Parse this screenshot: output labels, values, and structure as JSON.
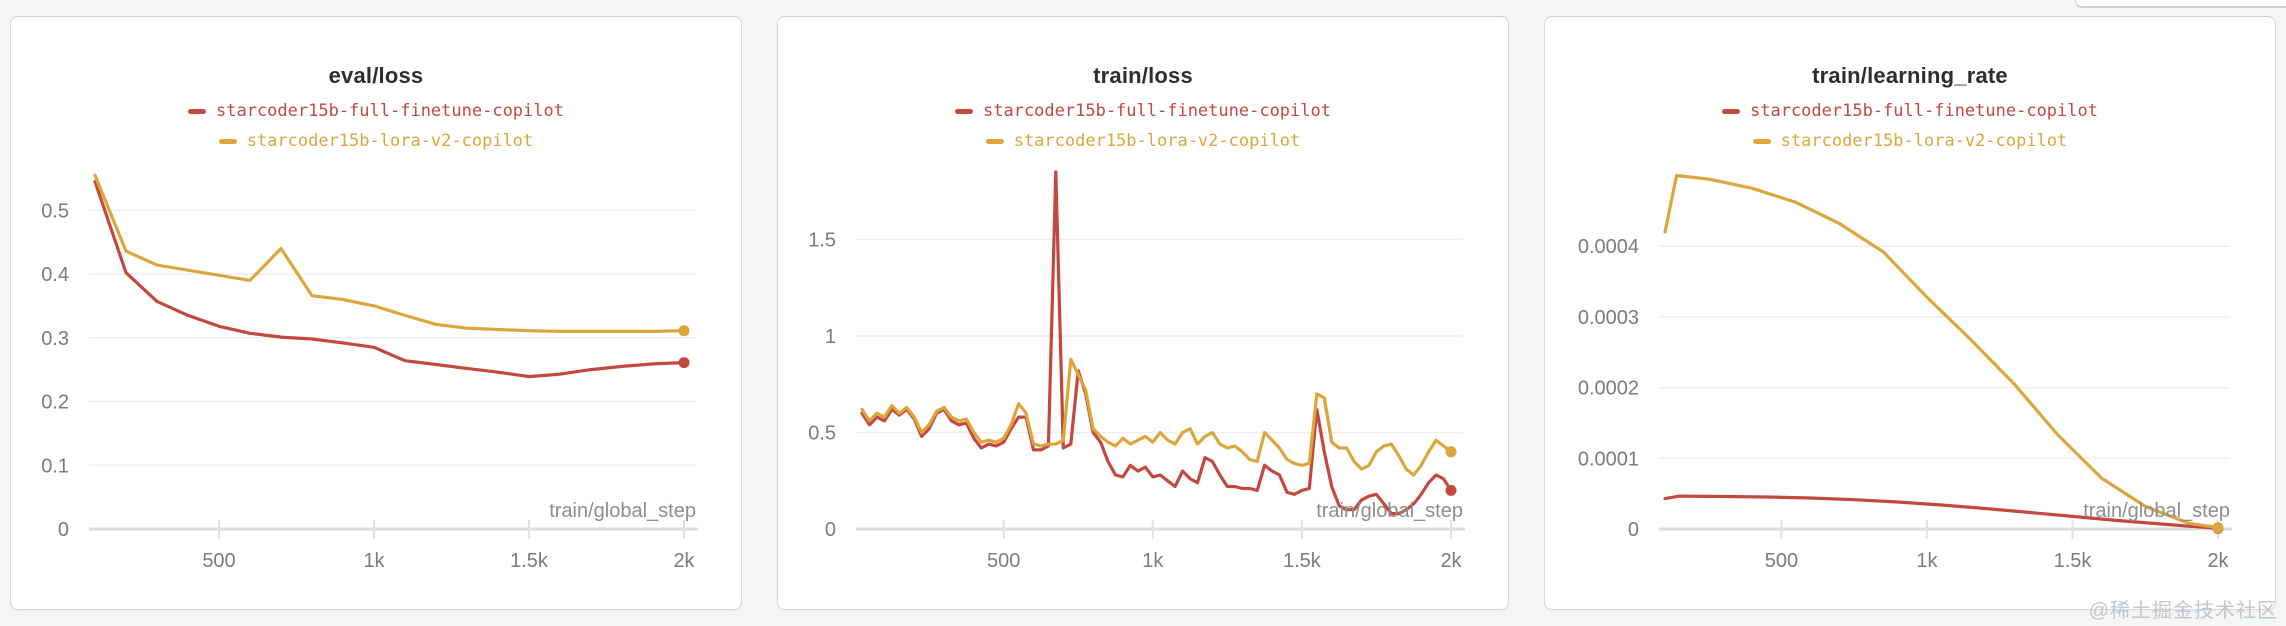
{
  "page": {
    "watermark": "@稀土掘金技术社区"
  },
  "chart_data": [
    {
      "type": "line",
      "title": "eval/loss",
      "xlabel": "train/global_step",
      "xlim": [
        100,
        2000
      ],
      "ylim": [
        0,
        0.56
      ],
      "grid": "horizontal",
      "legend_position": "top-center",
      "x_ticks": [
        {
          "v": 500,
          "label": "500"
        },
        {
          "v": 1000,
          "label": "1k"
        },
        {
          "v": 1500,
          "label": "1.5k"
        },
        {
          "v": 2000,
          "label": "2k"
        }
      ],
      "y_ticks": [
        {
          "v": 0,
          "label": "0"
        },
        {
          "v": 0.1,
          "label": "0.1"
        },
        {
          "v": 0.2,
          "label": "0.2"
        },
        {
          "v": 0.3,
          "label": "0.3"
        },
        {
          "v": 0.4,
          "label": "0.4"
        },
        {
          "v": 0.5,
          "label": "0.5"
        }
      ],
      "series": [
        {
          "name": "starcoder15b-full-finetune-copilot",
          "color": "#c3493f",
          "x0": 100,
          "dx": 100,
          "y": [
            0.545,
            0.402,
            0.357,
            0.335,
            0.318,
            0.307,
            0.301,
            0.298,
            0.292,
            0.285,
            0.264,
            0.258,
            0.252,
            0.246,
            0.239,
            0.243,
            0.25,
            0.255,
            0.259,
            0.261
          ]
        },
        {
          "name": "starcoder15b-lora-v2-copilot",
          "color": "#dca63d",
          "x0": 100,
          "dx": 100,
          "y": [
            0.555,
            0.436,
            0.414,
            0.406,
            0.398,
            0.39,
            0.44,
            0.366,
            0.36,
            0.35,
            0.335,
            0.321,
            0.315,
            0.313,
            0.311,
            0.31,
            0.31,
            0.31,
            0.31,
            0.311
          ]
        }
      ]
    },
    {
      "type": "line",
      "title": "train/loss",
      "xlabel": "train/global_step",
      "xlim": [
        25,
        2000
      ],
      "ylim": [
        0,
        1.85
      ],
      "grid": "horizontal",
      "legend_position": "top-center",
      "x_ticks": [
        {
          "v": 500,
          "label": "500"
        },
        {
          "v": 1000,
          "label": "1k"
        },
        {
          "v": 1500,
          "label": "1.5k"
        },
        {
          "v": 2000,
          "label": "2k"
        }
      ],
      "y_ticks": [
        {
          "v": 0,
          "label": "0"
        },
        {
          "v": 0.5,
          "label": "0.5"
        },
        {
          "v": 1,
          "label": "1"
        },
        {
          "v": 1.5,
          "label": "1.5"
        }
      ],
      "series": [
        {
          "name": "starcoder15b-full-finetune-copilot",
          "color": "#c3493f",
          "x0": 25,
          "dx": 25,
          "y": [
            0.6,
            0.54,
            0.58,
            0.56,
            0.62,
            0.59,
            0.62,
            0.57,
            0.48,
            0.52,
            0.6,
            0.62,
            0.56,
            0.54,
            0.55,
            0.47,
            0.42,
            0.44,
            0.43,
            0.45,
            0.52,
            0.58,
            0.58,
            0.41,
            0.41,
            0.43,
            1.85,
            0.42,
            0.44,
            0.82,
            0.7,
            0.5,
            0.45,
            0.35,
            0.28,
            0.27,
            0.33,
            0.3,
            0.32,
            0.27,
            0.28,
            0.25,
            0.22,
            0.3,
            0.26,
            0.24,
            0.37,
            0.35,
            0.28,
            0.22,
            0.22,
            0.21,
            0.21,
            0.2,
            0.33,
            0.3,
            0.28,
            0.19,
            0.18,
            0.2,
            0.21,
            0.62,
            0.4,
            0.22,
            0.12,
            0.1,
            0.1,
            0.15,
            0.17,
            0.18,
            0.13,
            0.08,
            0.08,
            0.1,
            0.13,
            0.18,
            0.24,
            0.28,
            0.26,
            0.2
          ]
        },
        {
          "name": "starcoder15b-lora-v2-copilot",
          "color": "#dca63d",
          "x0": 25,
          "dx": 25,
          "y": [
            0.62,
            0.56,
            0.6,
            0.58,
            0.64,
            0.6,
            0.63,
            0.58,
            0.5,
            0.54,
            0.61,
            0.63,
            0.58,
            0.56,
            0.57,
            0.5,
            0.45,
            0.46,
            0.45,
            0.47,
            0.54,
            0.65,
            0.6,
            0.44,
            0.43,
            0.44,
            0.44,
            0.46,
            0.88,
            0.8,
            0.72,
            0.52,
            0.48,
            0.45,
            0.43,
            0.47,
            0.44,
            0.46,
            0.48,
            0.45,
            0.5,
            0.46,
            0.44,
            0.5,
            0.52,
            0.44,
            0.48,
            0.5,
            0.44,
            0.42,
            0.43,
            0.4,
            0.36,
            0.35,
            0.5,
            0.46,
            0.42,
            0.36,
            0.34,
            0.33,
            0.34,
            0.7,
            0.68,
            0.45,
            0.42,
            0.42,
            0.35,
            0.31,
            0.33,
            0.4,
            0.43,
            0.44,
            0.38,
            0.31,
            0.28,
            0.33,
            0.4,
            0.46,
            0.43,
            0.4
          ]
        }
      ]
    },
    {
      "type": "line",
      "title": "train/learning_rate",
      "xlabel": "train/global_step",
      "xlim": [
        100,
        2000
      ],
      "ylim": [
        0,
        0.000505
      ],
      "grid": "horizontal",
      "legend_position": "top-center",
      "x_ticks": [
        {
          "v": 500,
          "label": "500"
        },
        {
          "v": 1000,
          "label": "1k"
        },
        {
          "v": 1500,
          "label": "1.5k"
        },
        {
          "v": 2000,
          "label": "2k"
        }
      ],
      "y_ticks": [
        {
          "v": 0,
          "label": "0"
        },
        {
          "v": 0.0001,
          "label": "0.0001"
        },
        {
          "v": 0.0002,
          "label": "0.0002"
        },
        {
          "v": 0.0003,
          "label": "0.0003"
        },
        {
          "v": 0.0004,
          "label": "0.0004"
        }
      ],
      "series": [
        {
          "name": "starcoder15b-full-finetune-copilot",
          "color": "#c3493f",
          "points": [
            [
              100,
              4.3e-05
            ],
            [
              150,
              4.65e-05
            ],
            [
              300,
              4.6e-05
            ],
            [
              450,
              4.52e-05
            ],
            [
              600,
              4.38e-05
            ],
            [
              750,
              4.15e-05
            ],
            [
              900,
              3.82e-05
            ],
            [
              1050,
              3.4e-05
            ],
            [
              1200,
              2.9e-05
            ],
            [
              1350,
              2.35e-05
            ],
            [
              1500,
              1.78e-05
            ],
            [
              1650,
              1.22e-05
            ],
            [
              1800,
              7.2e-06
            ],
            [
              1900,
              4e-06
            ],
            [
              2000,
              1e-06
            ]
          ]
        },
        {
          "name": "starcoder15b-lora-v2-copilot",
          "color": "#dca63d",
          "points": [
            [
              100,
              0.00042
            ],
            [
              140,
              0.0005
            ],
            [
              250,
              0.000495
            ],
            [
              400,
              0.000482
            ],
            [
              550,
              0.000462
            ],
            [
              700,
              0.000432
            ],
            [
              850,
              0.000392
            ],
            [
              1000,
              0.000328
            ],
            [
              1150,
              0.000268
            ],
            [
              1300,
              0.000205
            ],
            [
              1450,
              0.000133
            ],
            [
              1600,
              7.2e-05
            ],
            [
              1750,
              3.2e-05
            ],
            [
              1900,
              8e-06
            ],
            [
              2000,
              2e-06
            ]
          ]
        }
      ]
    }
  ]
}
